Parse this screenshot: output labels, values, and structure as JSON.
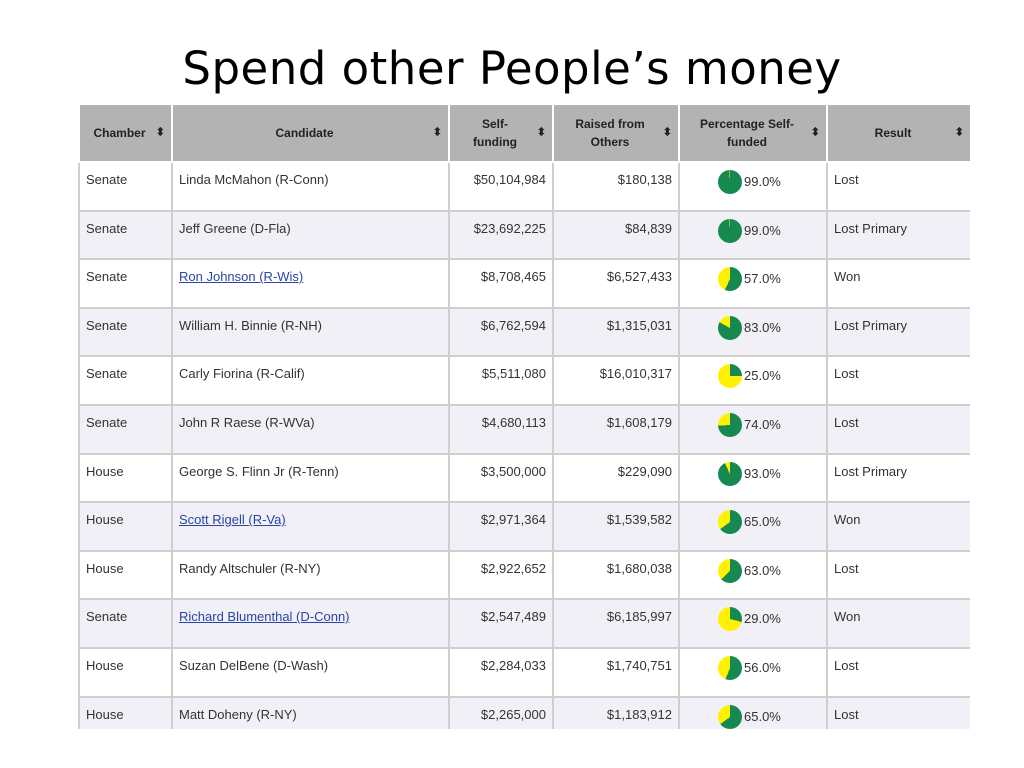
{
  "slide": {
    "title": "Spend other People’s money"
  },
  "table": {
    "sort_glyph": "⬍",
    "headers": [
      {
        "key": "chamber",
        "label": "Chamber"
      },
      {
        "key": "candidate",
        "label": "Candidate"
      },
      {
        "key": "self_funding",
        "label": "Self-\nfunding"
      },
      {
        "key": "raised",
        "label": "Raised from\nOthers"
      },
      {
        "key": "pct",
        "label": "Percentage Self-\nfunded"
      },
      {
        "key": "result",
        "label": "Result"
      }
    ],
    "colors": {
      "self_funded": "#15894f",
      "others": "#fff200",
      "link": "#2a45a8"
    },
    "rows": [
      {
        "chamber": "Senate",
        "candidate": "Linda McMahon (R-Conn)",
        "link": false,
        "self_funding": "$50,104,984",
        "raised": "$180,138",
        "pct": "99.0%",
        "pct_value": 99.0,
        "result": "Lost"
      },
      {
        "chamber": "Senate",
        "candidate": "Jeff Greene (D-Fla)",
        "link": false,
        "self_funding": "$23,692,225",
        "raised": "$84,839",
        "pct": "99.0%",
        "pct_value": 99.0,
        "result": "Lost Primary"
      },
      {
        "chamber": "Senate",
        "candidate": "Ron Johnson (R-Wis)",
        "link": true,
        "self_funding": "$8,708,465",
        "raised": "$6,527,433",
        "pct": "57.0%",
        "pct_value": 57.0,
        "result": "Won"
      },
      {
        "chamber": "Senate",
        "candidate": "William H. Binnie (R-NH)",
        "link": false,
        "self_funding": "$6,762,594",
        "raised": "$1,315,031",
        "pct": "83.0%",
        "pct_value": 83.0,
        "result": "Lost Primary"
      },
      {
        "chamber": "Senate",
        "candidate": "Carly Fiorina (R-Calif)",
        "link": false,
        "self_funding": "$5,511,080",
        "raised": "$16,010,317",
        "pct": "25.0%",
        "pct_value": 25.0,
        "result": "Lost"
      },
      {
        "chamber": "Senate",
        "candidate": "John R Raese (R-WVa)",
        "link": false,
        "self_funding": "$4,680,113",
        "raised": "$1,608,179",
        "pct": "74.0%",
        "pct_value": 74.0,
        "result": "Lost"
      },
      {
        "chamber": "House",
        "candidate": "George S. Flinn Jr (R-Tenn)",
        "link": false,
        "self_funding": "$3,500,000",
        "raised": "$229,090",
        "pct": "93.0%",
        "pct_value": 93.0,
        "result": "Lost Primary"
      },
      {
        "chamber": "House",
        "candidate": "Scott Rigell (R-Va)",
        "link": true,
        "self_funding": "$2,971,364",
        "raised": "$1,539,582",
        "pct": "65.0%",
        "pct_value": 65.0,
        "result": "Won"
      },
      {
        "chamber": "House",
        "candidate": "Randy Altschuler (R-NY)",
        "link": false,
        "self_funding": "$2,922,652",
        "raised": "$1,680,038",
        "pct": "63.0%",
        "pct_value": 63.0,
        "result": "Lost"
      },
      {
        "chamber": "Senate",
        "candidate": "Richard Blumenthal (D-Conn)",
        "link": true,
        "self_funding": "$2,547,489",
        "raised": "$6,185,997",
        "pct": "29.0%",
        "pct_value": 29.0,
        "result": "Won"
      },
      {
        "chamber": "House",
        "candidate": "Suzan DelBene (D-Wash)",
        "link": false,
        "self_funding": "$2,284,033",
        "raised": "$1,740,751",
        "pct": "56.0%",
        "pct_value": 56.0,
        "result": "Lost"
      },
      {
        "chamber": "House",
        "candidate": "Matt Doheny (R-NY)",
        "link": false,
        "self_funding": "$2,265,000",
        "raised": "$1,183,912",
        "pct": "65.0%",
        "pct_value": 65.0,
        "result": "Lost"
      }
    ]
  }
}
